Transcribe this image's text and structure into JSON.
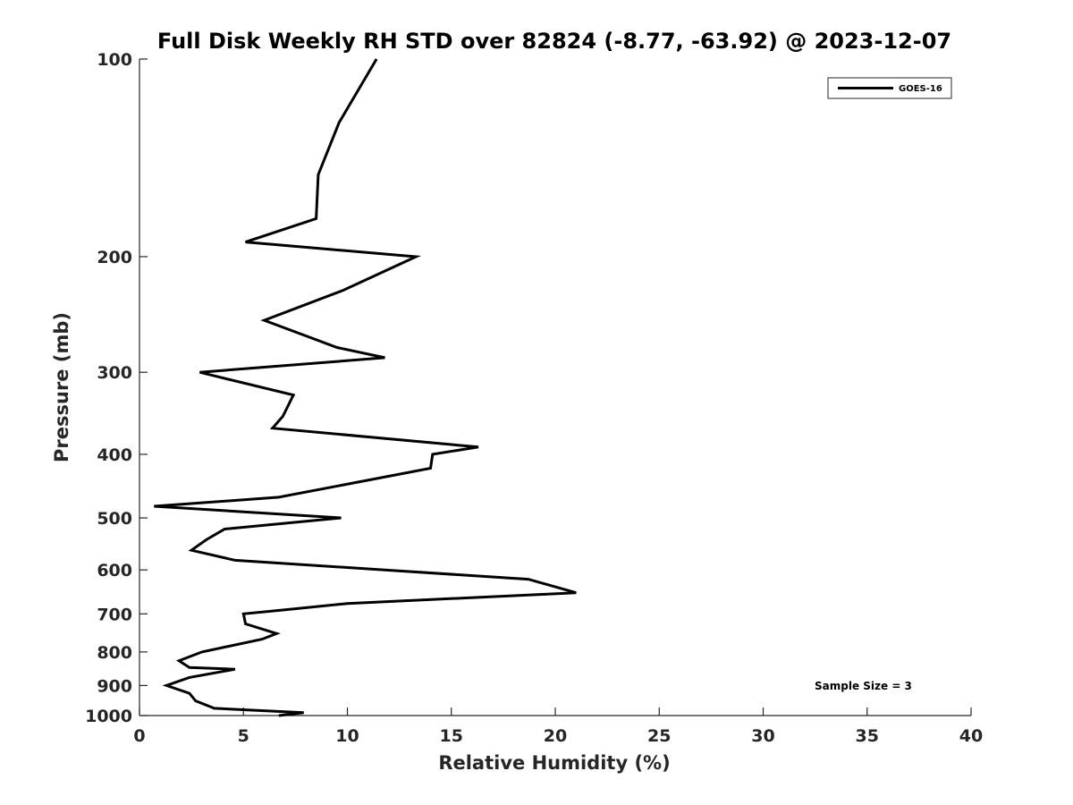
{
  "chart_data": {
    "type": "line",
    "title": "Full Disk Weekly RH STD over 82824 (-8.77, -63.92) @ 2023-12-07",
    "xlabel": "Relative Humidity (%)",
    "ylabel": "Pressure (mb)",
    "xlim": [
      0,
      40
    ],
    "ylim": [
      100,
      1000
    ],
    "y_scale": "log",
    "y_reversed": true,
    "grid": false,
    "x_ticks": [
      0,
      5,
      10,
      15,
      20,
      25,
      30,
      35,
      40
    ],
    "x_tick_labels": [
      "0",
      "5",
      "10",
      "15",
      "20",
      "25",
      "30",
      "35",
      "40"
    ],
    "y_ticks": [
      100,
      200,
      300,
      400,
      500,
      600,
      700,
      800,
      900,
      1000
    ],
    "y_tick_labels": [
      "100",
      "200",
      "300",
      "400",
      "500",
      "600",
      "700",
      "800",
      "900",
      "1000"
    ],
    "legend_position": "top-right",
    "series": [
      {
        "name": "GOES-16",
        "color": "#000000",
        "x": [
          11.4,
          9.6,
          8.6,
          8.5,
          5.1,
          13.3,
          9.8,
          6.0,
          9.5,
          11.8,
          2.9,
          7.4,
          6.9,
          6.4,
          16.3,
          14.1,
          14.0,
          6.7,
          0.7,
          9.7,
          4.1,
          3.2,
          2.5,
          4.6,
          18.7,
          21.0,
          10.0,
          7.0,
          5.0,
          5.1,
          6.6,
          5.9,
          3.0,
          1.9,
          2.4,
          4.6,
          2.4,
          1.3,
          2.4,
          2.7,
          3.6,
          7.9,
          6.7
        ],
        "y": [
          100,
          125,
          150,
          175,
          190,
          200,
          225,
          250,
          275,
          285,
          300,
          325,
          350,
          365,
          390,
          400,
          420,
          465,
          480,
          500,
          520,
          540,
          560,
          580,
          620,
          650,
          675,
          690,
          700,
          725,
          750,
          765,
          800,
          825,
          845,
          850,
          875,
          900,
          925,
          950,
          975,
          990,
          1000
        ]
      }
    ],
    "annotations": [
      "Sample Size = 3"
    ]
  }
}
